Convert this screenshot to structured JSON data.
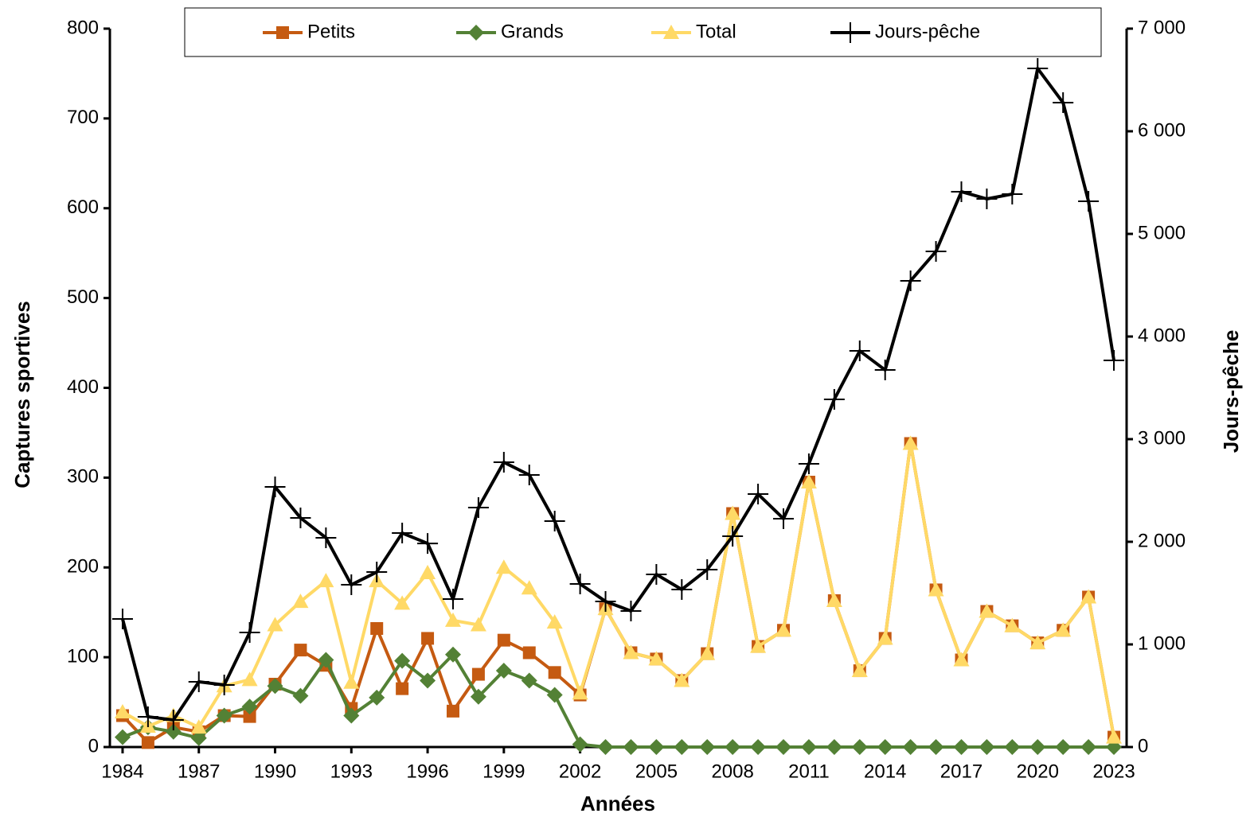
{
  "chart_data": {
    "type": "line",
    "x_label": "Années",
    "y_label": "Captures sportives",
    "y2_label": "Jours-pêche",
    "x": [
      1984,
      1985,
      1986,
      1987,
      1988,
      1989,
      1990,
      1991,
      1992,
      1993,
      1994,
      1995,
      1996,
      1997,
      1998,
      1999,
      2000,
      2001,
      2002,
      2003,
      2004,
      2005,
      2006,
      2007,
      2008,
      2009,
      2010,
      2011,
      2012,
      2013,
      2014,
      2015,
      2016,
      2017,
      2018,
      2019,
      2020,
      2021,
      2022,
      2023
    ],
    "xlim": [
      1983.5,
      2023.5
    ],
    "xticks": [
      1984,
      1987,
      1990,
      1993,
      1996,
      1999,
      2002,
      2005,
      2008,
      2011,
      2014,
      2017,
      2020,
      2023
    ],
    "ylim": [
      0,
      800
    ],
    "yticks": [
      0,
      100,
      200,
      300,
      400,
      500,
      600,
      700,
      800
    ],
    "y2lim": [
      0,
      7000
    ],
    "y2ticks": [
      0,
      {
        "value": 1000,
        "label": "1 000"
      },
      {
        "value": 2000,
        "label": "2 000"
      },
      {
        "value": 3000,
        "label": "3 000"
      },
      {
        "value": 4000,
        "label": "4 000"
      },
      {
        "value": 5000,
        "label": "5 000"
      },
      {
        "value": 6000,
        "label": "6 000"
      },
      {
        "value": 7000,
        "label": "7 000"
      }
    ],
    "legend": "top",
    "series": [
      {
        "name": "Petits",
        "color": "#c55a11",
        "marker": "square",
        "values": [
          35,
          5,
          22,
          17,
          35,
          34,
          70,
          108,
          91,
          43,
          132,
          65,
          121,
          40,
          81,
          119,
          105,
          83,
          58,
          154,
          105,
          98,
          74,
          104,
          260,
          112,
          130,
          295,
          163,
          85,
          121,
          338,
          175,
          97,
          151,
          135,
          116,
          130,
          167,
          11
        ]
      },
      {
        "name": "Grands",
        "color": "#538135",
        "marker": "diamond",
        "values": [
          11,
          22,
          17,
          10,
          35,
          45,
          68,
          57,
          97,
          35,
          55,
          96,
          74,
          103,
          56,
          85,
          74,
          58,
          3,
          0,
          0,
          0,
          0,
          0,
          0,
          0,
          0,
          0,
          0,
          0,
          0,
          0,
          0,
          0,
          0,
          0,
          0,
          0,
          0,
          0
        ]
      },
      {
        "name": "Total",
        "color": "#ffd966",
        "marker": "triangle",
        "values": [
          39,
          23,
          35,
          22,
          68,
          75,
          136,
          162,
          185,
          72,
          185,
          160,
          194,
          141,
          136,
          200,
          177,
          139,
          60,
          154,
          105,
          98,
          74,
          104,
          260,
          112,
          130,
          295,
          163,
          85,
          121,
          338,
          175,
          97,
          151,
          135,
          116,
          130,
          167,
          11
        ]
      },
      {
        "name": "Jours-pêche",
        "color": "#000000",
        "marker": "plus",
        "axis": "y2",
        "values": [
          1248,
          295,
          264,
          636,
          605,
          1116,
          2535,
          2233,
          2039,
          1581,
          1705,
          2085,
          1984,
          1442,
          2333,
          2775,
          2651,
          2202,
          1589,
          1419,
          1326,
          1682,
          1535,
          1729,
          2054,
          2465,
          2225,
          2760,
          3388,
          3860,
          3674,
          4543,
          4829,
          5411,
          5341,
          5388,
          6612,
          6279,
          5318,
          3767
        ]
      }
    ]
  }
}
